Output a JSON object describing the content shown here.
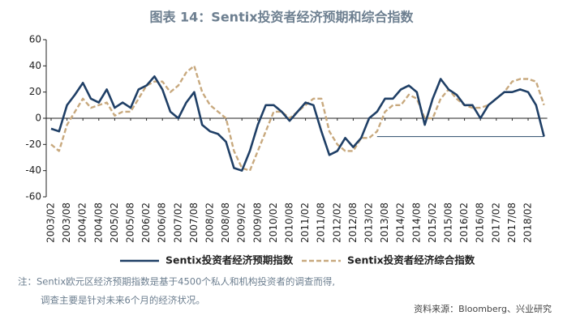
{
  "chart_data": {
    "type": "line",
    "title": "图表 14：Sentix投资者经济预期和综合指数",
    "categories": [
      "2003/02",
      null,
      "2003/08",
      null,
      "2004/02",
      null,
      "2004/08",
      null,
      "2005/02",
      null,
      "2005/08",
      null,
      "2006/02",
      null,
      "2006/08",
      null,
      "2007/02",
      null,
      "2007/08",
      null,
      "2008/02",
      null,
      "2008/08",
      null,
      "2009/02",
      null,
      "2009/08",
      null,
      "2010/02",
      null,
      "2010/08",
      null,
      "2011/02",
      null,
      "2011/08",
      null,
      "2012/02",
      null,
      "2012/08",
      null,
      "2013/02",
      null,
      "2013/08",
      null,
      "2014/02",
      null,
      "2014/08",
      null,
      "2015/02",
      null,
      "2015/08",
      null,
      "2016/02",
      null,
      "2016/08",
      null,
      "2017/02",
      null,
      "2017/08",
      null,
      "2018/02",
      null,
      null
    ],
    "series": [
      {
        "name": "Sentix投资者经济预期指数",
        "color": "#1f3f66",
        "dash": false,
        "values": [
          -8,
          -10,
          10,
          18,
          27,
          15,
          12,
          22,
          8,
          12,
          8,
          22,
          25,
          32,
          22,
          5,
          0,
          12,
          20,
          -5,
          -10,
          -12,
          -18,
          -38,
          -40,
          -25,
          -5,
          10,
          10,
          5,
          -2,
          5,
          12,
          10,
          -10,
          -28,
          -25,
          -15,
          -22,
          -15,
          0,
          5,
          15,
          15,
          22,
          25,
          20,
          -5,
          15,
          30,
          22,
          18,
          10,
          10,
          0,
          10,
          15,
          20,
          20,
          22,
          20,
          10,
          -14
        ]
      },
      {
        "name": "Sentix投资者经济综合指数",
        "color": "#c8a97e",
        "dash": true,
        "values": [
          -20,
          -25,
          -5,
          5,
          15,
          8,
          10,
          12,
          2,
          5,
          5,
          15,
          25,
          28,
          28,
          20,
          25,
          35,
          40,
          20,
          10,
          5,
          0,
          -25,
          -38,
          -40,
          -25,
          -10,
          5,
          5,
          0,
          5,
          10,
          15,
          15,
          -10,
          -20,
          -25,
          -25,
          -15,
          -15,
          -10,
          5,
          10,
          10,
          18,
          15,
          0,
          0,
          15,
          22,
          15,
          10,
          8,
          8,
          10,
          15,
          20,
          28,
          30,
          30,
          28,
          10
        ]
      }
    ],
    "ylim": [
      -60,
      60
    ],
    "yticks": [
      60,
      40,
      20,
      0,
      -20,
      -40,
      -60
    ],
    "note": [
      "注：Sentix欧元区经济预期指数是基于4500个私人和机构投资者的调查而得,",
      "调查主要是针对未来6个月的经济状况。"
    ],
    "source": "资料来源：Bloomberg、兴业研究"
  }
}
